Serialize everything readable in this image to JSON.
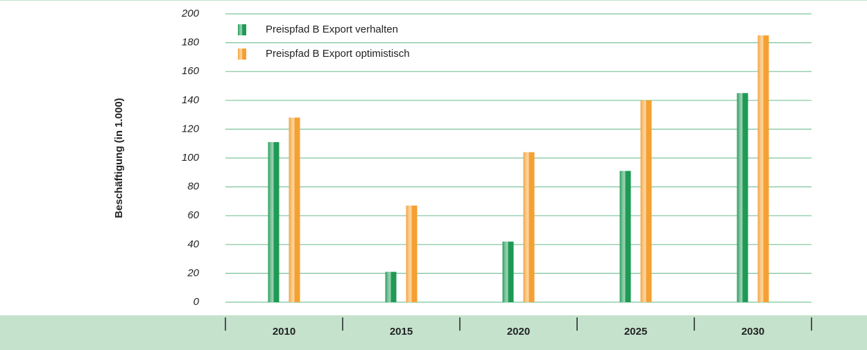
{
  "chart_data": {
    "type": "bar",
    "y_axis_label": "Beschäftigung (in 1.000)",
    "categories": [
      "2010",
      "2015",
      "2020",
      "2025",
      "2030"
    ],
    "series": [
      {
        "name": "Preispfad B Export verhalten",
        "color": "#1e9a55",
        "values": [
          111,
          21,
          42,
          91,
          145
        ]
      },
      {
        "name": "Preispfad B Export optimistisch",
        "color": "#f5a030",
        "values": [
          128,
          67,
          104,
          140,
          185
        ]
      }
    ],
    "ylim": [
      0,
      200
    ],
    "yticks": [
      0,
      20,
      40,
      60,
      80,
      100,
      120,
      140,
      160,
      180,
      200
    ],
    "grid": true,
    "legend": "upper left"
  }
}
